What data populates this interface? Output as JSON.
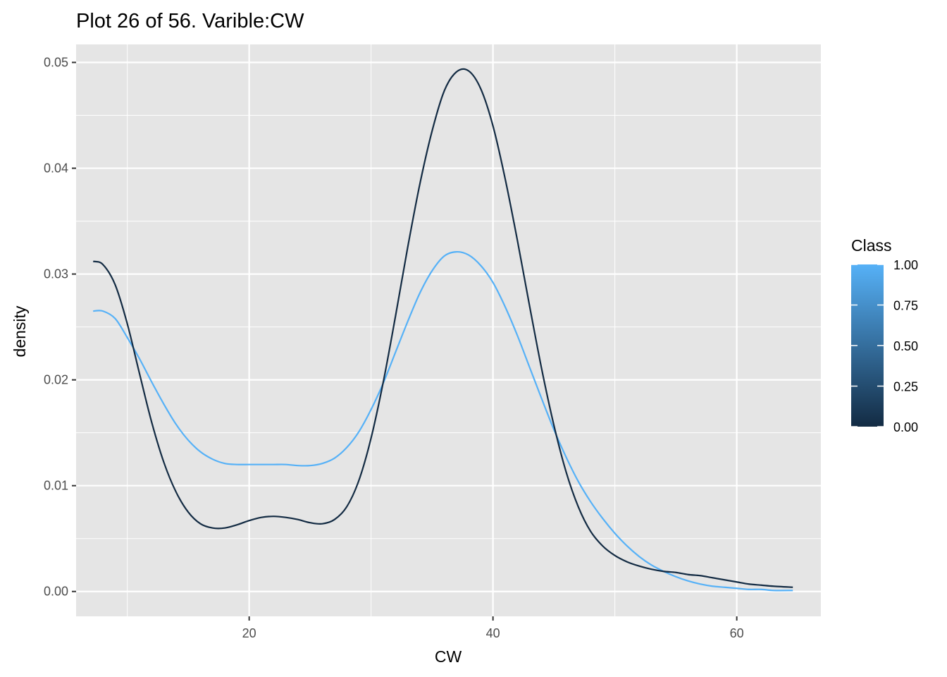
{
  "chart_data": {
    "type": "line",
    "title": "Plot 26 of 56. Varible:CW",
    "xlabel": "CW",
    "ylabel": "density",
    "xlim": [
      5.8,
      66.9
    ],
    "ylim": [
      -0.00235,
      0.0517
    ],
    "x_ticks": [
      20,
      40,
      60
    ],
    "y_ticks": [
      0.0,
      0.01,
      0.02,
      0.03,
      0.04,
      0.05
    ],
    "x_tick_labels": [
      "20",
      "40",
      "60"
    ],
    "y_tick_labels": [
      "0.00",
      "0.01",
      "0.02",
      "0.03",
      "0.04",
      "0.05"
    ],
    "grid": true,
    "legend": {
      "title": "Class",
      "position": "right",
      "type": "colorbar",
      "range": [
        0.0,
        1.0
      ],
      "labels": [
        "1.00",
        "0.75",
        "0.50",
        "0.25",
        "0.00"
      ],
      "low_color": "#132B43",
      "high_color": "#56B1F7"
    },
    "series": [
      {
        "class": 0,
        "color": "#132B43",
        "points": [
          [
            7.2,
            0.0312
          ],
          [
            8,
            0.0309
          ],
          [
            9,
            0.029
          ],
          [
            10,
            0.0253
          ],
          [
            11,
            0.0206
          ],
          [
            12,
            0.016
          ],
          [
            13,
            0.0122
          ],
          [
            14,
            0.0094
          ],
          [
            15,
            0.0075
          ],
          [
            16,
            0.0064
          ],
          [
            17,
            0.006
          ],
          [
            18,
            0.006
          ],
          [
            19,
            0.0063
          ],
          [
            20,
            0.0067
          ],
          [
            21,
            0.007
          ],
          [
            22,
            0.0071
          ],
          [
            23,
            0.007
          ],
          [
            24,
            0.0068
          ],
          [
            25,
            0.0065
          ],
          [
            26,
            0.0064
          ],
          [
            27,
            0.0068
          ],
          [
            28,
            0.008
          ],
          [
            29,
            0.0105
          ],
          [
            30,
            0.0145
          ],
          [
            31,
            0.0198
          ],
          [
            32,
            0.026
          ],
          [
            33,
            0.0325
          ],
          [
            34,
            0.0385
          ],
          [
            35,
            0.0435
          ],
          [
            36,
            0.0473
          ],
          [
            37,
            0.0491
          ],
          [
            38,
            0.0492
          ],
          [
            39,
            0.0475
          ],
          [
            40,
            0.044
          ],
          [
            41,
            0.039
          ],
          [
            42,
            0.0332
          ],
          [
            43,
            0.027
          ],
          [
            44,
            0.021
          ],
          [
            45,
            0.0157
          ],
          [
            46,
            0.0113
          ],
          [
            47,
            0.008
          ],
          [
            48,
            0.0057
          ],
          [
            49,
            0.0043
          ],
          [
            50,
            0.0034
          ],
          [
            51,
            0.0028
          ],
          [
            52,
            0.0024
          ],
          [
            53,
            0.0021
          ],
          [
            54,
            0.0019
          ],
          [
            55,
            0.0018
          ],
          [
            56,
            0.0016
          ],
          [
            57,
            0.0015
          ],
          [
            58,
            0.0013
          ],
          [
            59,
            0.0011
          ],
          [
            60,
            0.0009
          ],
          [
            61,
            0.0007
          ],
          [
            62,
            0.0006
          ],
          [
            63,
            0.0005
          ],
          [
            64.6,
            0.0004
          ]
        ]
      },
      {
        "class": 1,
        "color": "#56B1F7",
        "points": [
          [
            7.2,
            0.0265
          ],
          [
            8,
            0.0265
          ],
          [
            9,
            0.0258
          ],
          [
            10,
            0.024
          ],
          [
            11,
            0.022
          ],
          [
            12,
            0.0198
          ],
          [
            13,
            0.0177
          ],
          [
            14,
            0.0158
          ],
          [
            15,
            0.0143
          ],
          [
            16,
            0.0132
          ],
          [
            17,
            0.0125
          ],
          [
            18,
            0.0121
          ],
          [
            19,
            0.012
          ],
          [
            20,
            0.012
          ],
          [
            21,
            0.012
          ],
          [
            22,
            0.012
          ],
          [
            23,
            0.012
          ],
          [
            24,
            0.0119
          ],
          [
            25,
            0.0119
          ],
          [
            26,
            0.0121
          ],
          [
            27,
            0.0126
          ],
          [
            28,
            0.0136
          ],
          [
            29,
            0.0151
          ],
          [
            30,
            0.0172
          ],
          [
            31,
            0.0197
          ],
          [
            32,
            0.0226
          ],
          [
            33,
            0.0255
          ],
          [
            34,
            0.0282
          ],
          [
            35,
            0.0303
          ],
          [
            36,
            0.0317
          ],
          [
            37,
            0.0321
          ],
          [
            38,
            0.0318
          ],
          [
            39,
            0.0308
          ],
          [
            40,
            0.0292
          ],
          [
            41,
            0.0269
          ],
          [
            42,
            0.0242
          ],
          [
            43,
            0.0212
          ],
          [
            44,
            0.0182
          ],
          [
            45,
            0.0153
          ],
          [
            46,
            0.0127
          ],
          [
            47,
            0.0104
          ],
          [
            48,
            0.0085
          ],
          [
            49,
            0.0069
          ],
          [
            50,
            0.0055
          ],
          [
            51,
            0.0043
          ],
          [
            52,
            0.0033
          ],
          [
            53,
            0.0025
          ],
          [
            54,
            0.0019
          ],
          [
            55,
            0.0014
          ],
          [
            56,
            0.001
          ],
          [
            57,
            0.0007
          ],
          [
            58,
            0.0005
          ],
          [
            59,
            0.0004
          ],
          [
            60,
            0.0003
          ],
          [
            61,
            0.0002
          ],
          [
            62,
            0.0002
          ],
          [
            63,
            0.0001
          ],
          [
            64.6,
            0.0001
          ]
        ]
      }
    ]
  }
}
